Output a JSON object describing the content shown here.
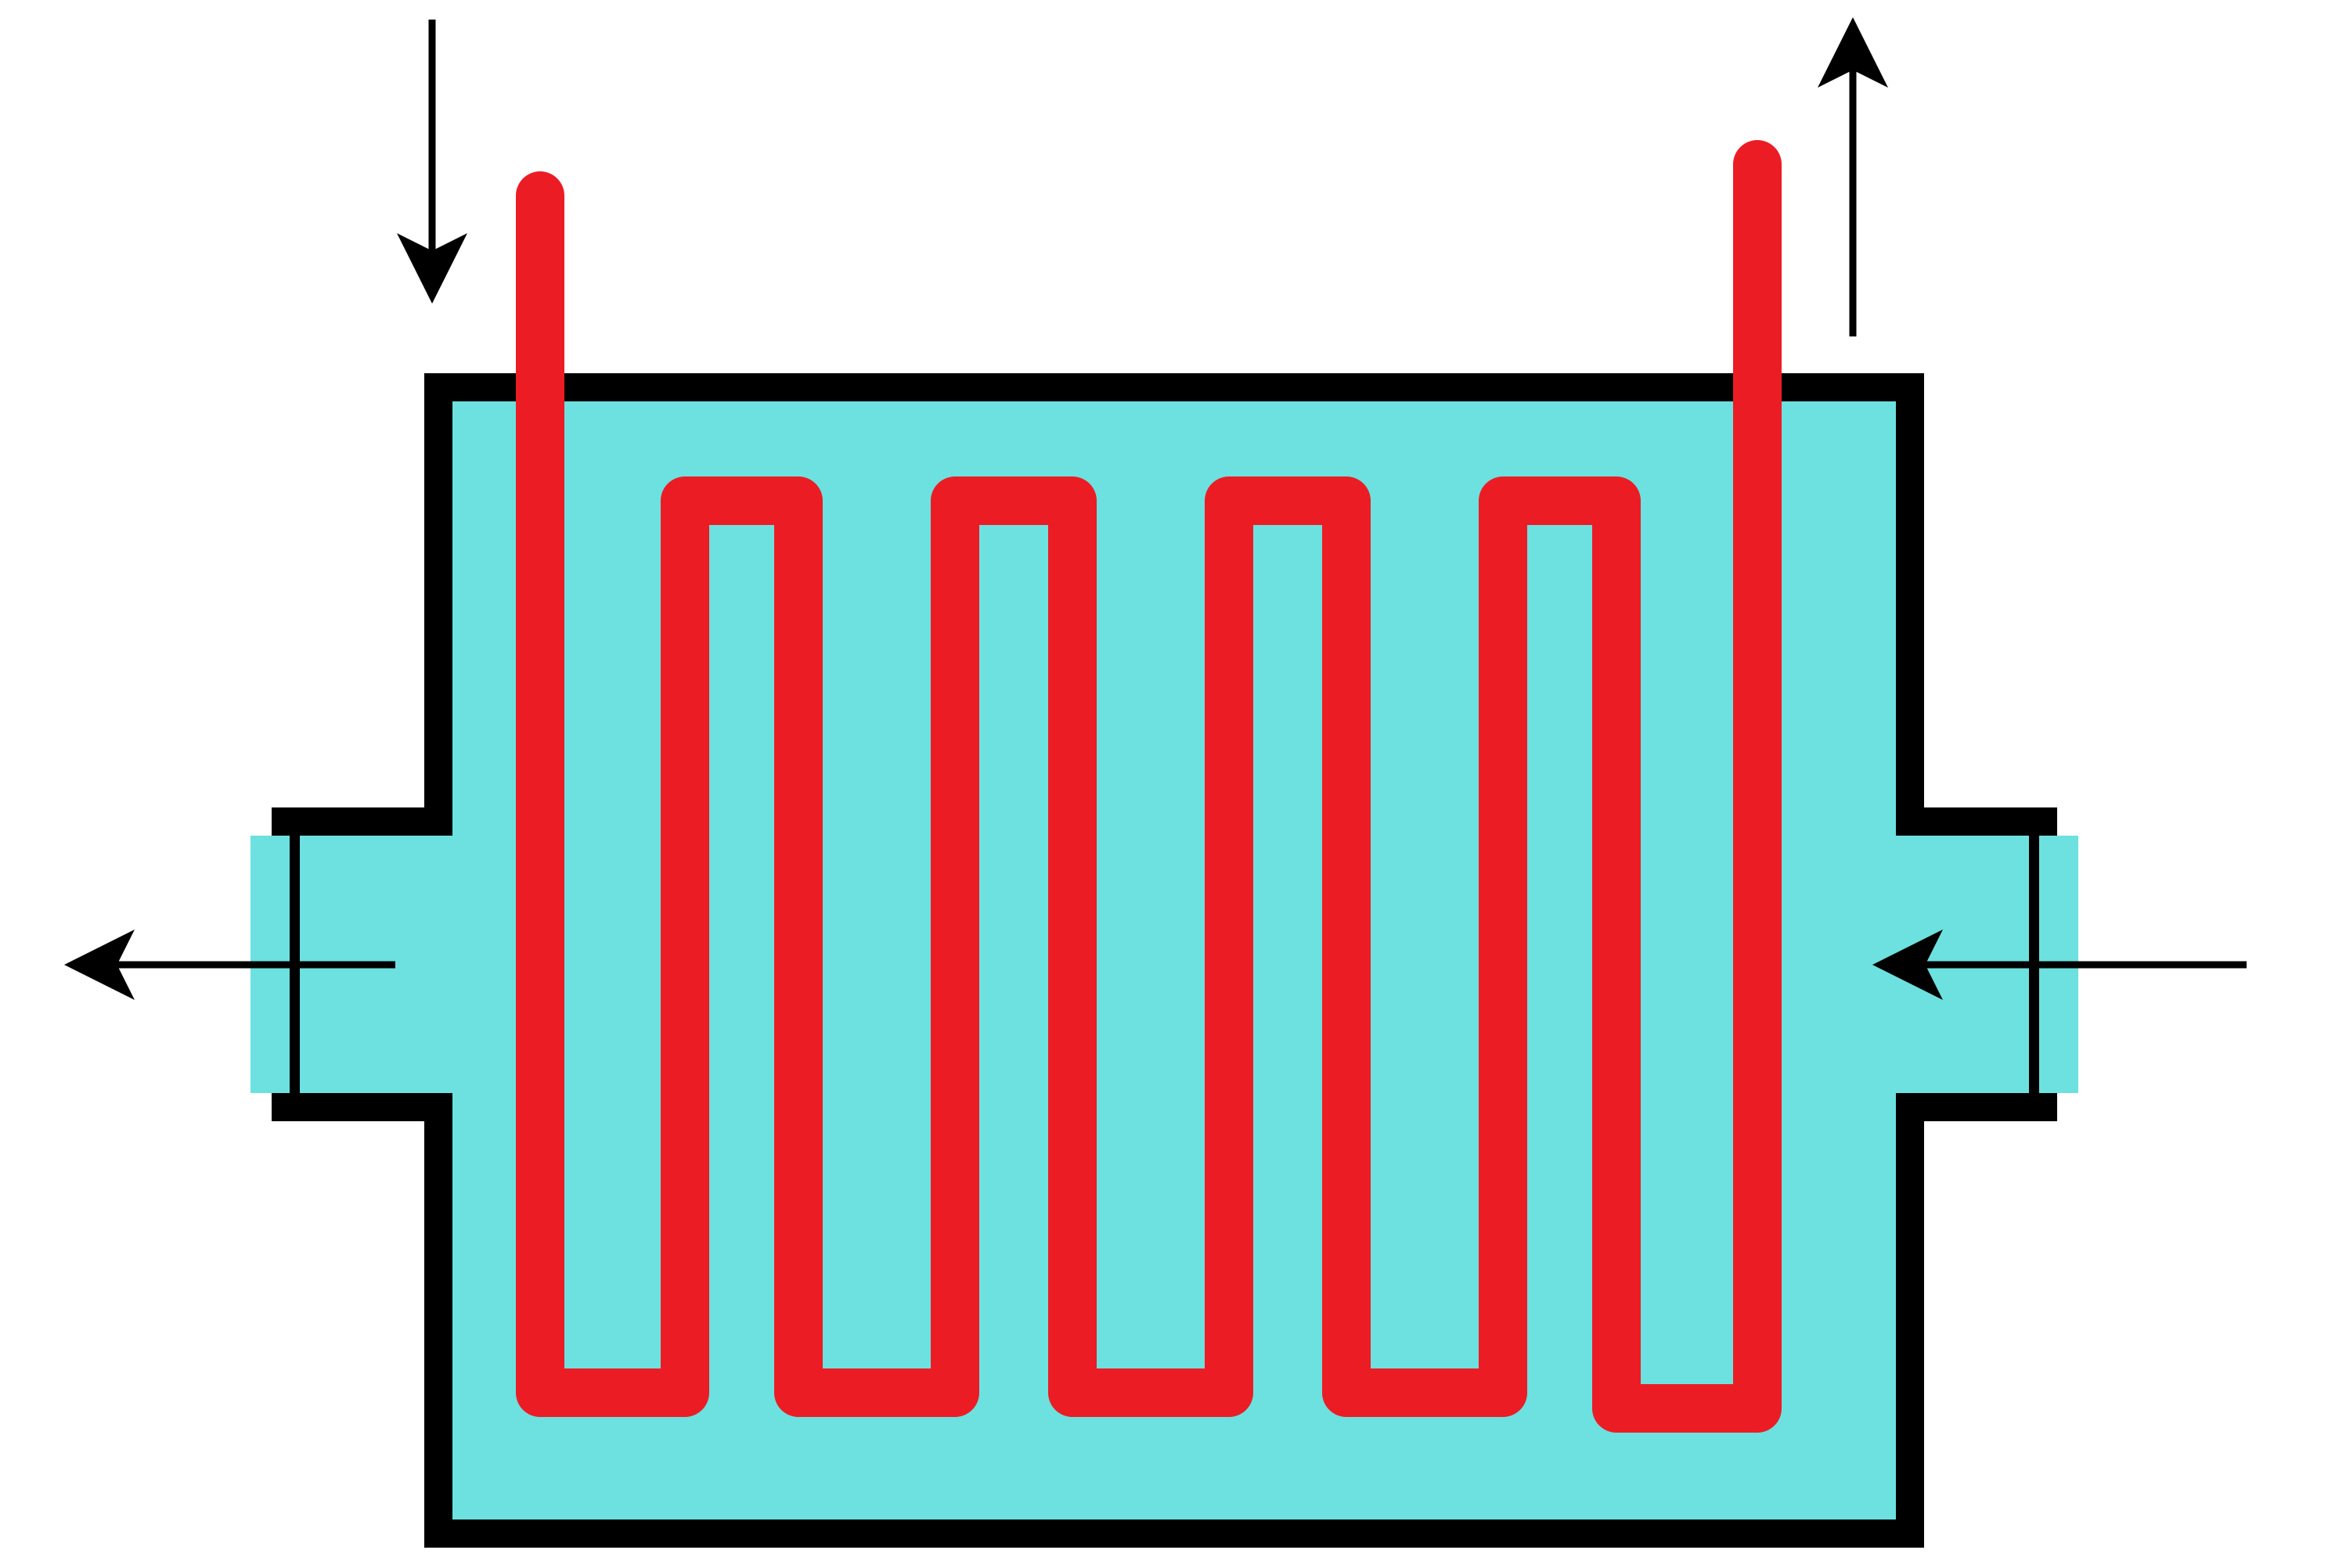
{
  "diagram": {
    "type": "coil-in-shell heat exchanger schematic",
    "colors": {
      "background": "#ffffff",
      "shell_fill": "#6ce1df",
      "shell_outline": "#000000",
      "coil": "#ec1c24",
      "arrow": "#000000"
    },
    "coil": {
      "inlet": "top-left",
      "outlet": "top-right",
      "upward_loops": 4
    },
    "shell_fluid": {
      "inlet": "right",
      "outlet": "left"
    },
    "arrows": [
      {
        "id": "coil-inlet-arrow",
        "direction": "down"
      },
      {
        "id": "coil-outlet-arrow",
        "direction": "up"
      },
      {
        "id": "shell-inlet-arrow",
        "direction": "left"
      },
      {
        "id": "shell-outlet-arrow",
        "direction": "left"
      }
    ]
  }
}
